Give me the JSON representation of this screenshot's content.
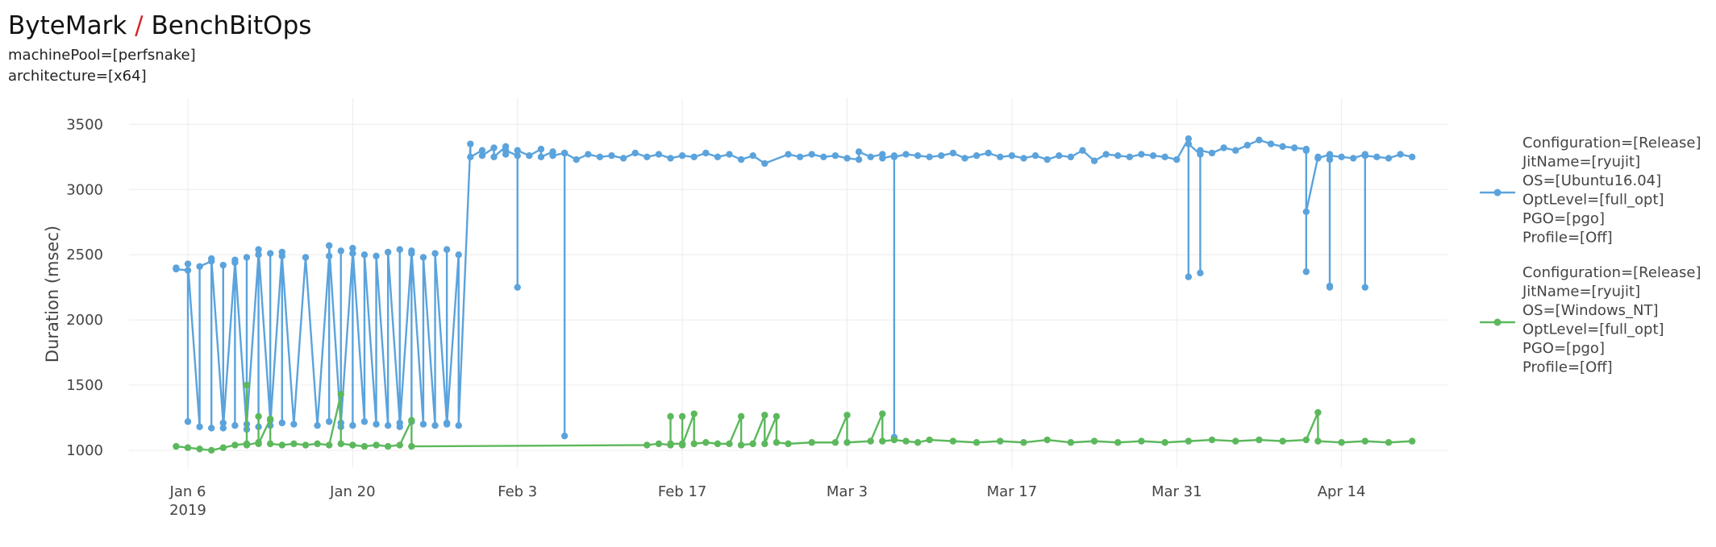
{
  "header": {
    "title_part1": "ByteMark",
    "title_sep": "/",
    "title_part2": "BenchBitOps",
    "filters": [
      "machinePool=[perfsnake]",
      "architecture=[x64]"
    ]
  },
  "colors": {
    "accent_sep": "#d62728",
    "series_blue": "#5ba3dc",
    "series_green": "#5cb85c",
    "grid": "#ececec"
  },
  "chart_data": {
    "type": "line",
    "xlabel": "",
    "ylabel": "Duration (msec)",
    "ylim": [
      870,
      3700
    ],
    "xlim": [
      "2019-01-01",
      "2019-04-23"
    ],
    "y_ticks": [
      1000,
      1500,
      2000,
      2500,
      3000,
      3500
    ],
    "x_ticks": [
      {
        "date": "2019-01-06",
        "label": "Jan 6",
        "sub": "2019"
      },
      {
        "date": "2019-01-20",
        "label": "Jan 20",
        "sub": ""
      },
      {
        "date": "2019-02-03",
        "label": "Feb 3",
        "sub": ""
      },
      {
        "date": "2019-02-17",
        "label": "Feb 17",
        "sub": ""
      },
      {
        "date": "2019-03-03",
        "label": "Mar 3",
        "sub": ""
      },
      {
        "date": "2019-03-17",
        "label": "Mar 17",
        "sub": ""
      },
      {
        "date": "2019-03-31",
        "label": "Mar 31",
        "sub": ""
      },
      {
        "date": "2019-04-14",
        "label": "Apr 14",
        "sub": ""
      }
    ],
    "grid": true,
    "legend_position": "right",
    "series": [
      {
        "name_lines": [
          "Configuration=[Release]",
          "JitName=[ryujit]",
          "OS=[Ubuntu16.04]",
          "OptLevel=[full_opt]",
          "PGO=[pgo]",
          "Profile=[Off]"
        ],
        "color": "#5ba3dc",
        "points": [
          [
            "2019-01-05",
            2400
          ],
          [
            "2019-01-05",
            2390
          ],
          [
            "2019-01-06",
            2380
          ],
          [
            "2019-01-06",
            1220
          ],
          [
            "2019-01-06",
            2430
          ],
          [
            "2019-01-07",
            1180
          ],
          [
            "2019-01-07",
            2410
          ],
          [
            "2019-01-08",
            2450
          ],
          [
            "2019-01-08",
            1170
          ],
          [
            "2019-01-08",
            2470
          ],
          [
            "2019-01-09",
            1210
          ],
          [
            "2019-01-09",
            2420
          ],
          [
            "2019-01-09",
            1170
          ],
          [
            "2019-01-10",
            2440
          ],
          [
            "2019-01-10",
            1190
          ],
          [
            "2019-01-10",
            2460
          ],
          [
            "2019-01-11",
            1160
          ],
          [
            "2019-01-11",
            2480
          ],
          [
            "2019-01-11",
            1200
          ],
          [
            "2019-01-12",
            2500
          ],
          [
            "2019-01-12",
            1180
          ],
          [
            "2019-01-12",
            2540
          ],
          [
            "2019-01-13",
            1230
          ],
          [
            "2019-01-13",
            2510
          ],
          [
            "2019-01-13",
            1190
          ],
          [
            "2019-01-14",
            2520
          ],
          [
            "2019-01-14",
            1210
          ],
          [
            "2019-01-14",
            2490
          ],
          [
            "2019-01-15",
            1200
          ],
          [
            "2019-01-16",
            2480
          ],
          [
            "2019-01-17",
            1190
          ],
          [
            "2019-01-18",
            2490
          ],
          [
            "2019-01-18",
            1220
          ],
          [
            "2019-01-18",
            2570
          ],
          [
            "2019-01-19",
            1180
          ],
          [
            "2019-01-19",
            2530
          ],
          [
            "2019-01-19",
            1210
          ],
          [
            "2019-01-20",
            2510
          ],
          [
            "2019-01-20",
            1190
          ],
          [
            "2019-01-20",
            2550
          ],
          [
            "2019-01-21",
            1220
          ],
          [
            "2019-01-21",
            2500
          ],
          [
            "2019-01-22",
            1200
          ],
          [
            "2019-01-22",
            2490
          ],
          [
            "2019-01-23",
            1190
          ],
          [
            "2019-01-23",
            2520
          ],
          [
            "2019-01-24",
            1210
          ],
          [
            "2019-01-24",
            2540
          ],
          [
            "2019-01-24",
            1180
          ],
          [
            "2019-01-25",
            2510
          ],
          [
            "2019-01-25",
            1220
          ],
          [
            "2019-01-25",
            2530
          ],
          [
            "2019-01-26",
            1200
          ],
          [
            "2019-01-26",
            2480
          ],
          [
            "2019-01-27",
            1190
          ],
          [
            "2019-01-27",
            2510
          ],
          [
            "2019-01-28",
            1210
          ],
          [
            "2019-01-28",
            2540
          ],
          [
            "2019-01-28",
            1200
          ],
          [
            "2019-01-29",
            2500
          ],
          [
            "2019-01-29",
            1190
          ],
          [
            "2019-01-30",
            3350
          ],
          [
            "2019-01-30",
            3250
          ],
          [
            "2019-01-31",
            3300
          ],
          [
            "2019-01-31",
            3260
          ],
          [
            "2019-02-01",
            3320
          ],
          [
            "2019-02-01",
            3250
          ],
          [
            "2019-02-02",
            3330
          ],
          [
            "2019-02-02",
            3270
          ],
          [
            "2019-02-02",
            3300
          ],
          [
            "2019-02-03",
            3260
          ],
          [
            "2019-02-03",
            2250
          ],
          [
            "2019-02-03",
            3300
          ],
          [
            "2019-02-04",
            3260
          ],
          [
            "2019-02-05",
            3310
          ],
          [
            "2019-02-05",
            3250
          ],
          [
            "2019-02-06",
            3290
          ],
          [
            "2019-02-06",
            3260
          ],
          [
            "2019-02-07",
            3280
          ],
          [
            "2019-02-07",
            1110
          ],
          [
            "2019-02-07",
            3280
          ],
          [
            "2019-02-08",
            3230
          ],
          [
            "2019-02-09",
            3270
          ],
          [
            "2019-02-10",
            3250
          ],
          [
            "2019-02-11",
            3260
          ],
          [
            "2019-02-12",
            3240
          ],
          [
            "2019-02-13",
            3280
          ],
          [
            "2019-02-14",
            3250
          ],
          [
            "2019-02-15",
            3270
          ],
          [
            "2019-02-16",
            3240
          ],
          [
            "2019-02-17",
            3260
          ],
          [
            "2019-02-18",
            3250
          ],
          [
            "2019-02-19",
            3280
          ],
          [
            "2019-02-20",
            3250
          ],
          [
            "2019-02-21",
            3270
          ],
          [
            "2019-02-22",
            3230
          ],
          [
            "2019-02-23",
            3260
          ],
          [
            "2019-02-24",
            3200
          ],
          [
            "2019-02-26",
            3270
          ],
          [
            "2019-02-27",
            3250
          ],
          [
            "2019-02-28",
            3270
          ],
          [
            "2019-03-01",
            3250
          ],
          [
            "2019-03-02",
            3260
          ],
          [
            "2019-03-03",
            3240
          ],
          [
            "2019-03-04",
            3230
          ],
          [
            "2019-03-04",
            3290
          ],
          [
            "2019-03-05",
            3250
          ],
          [
            "2019-03-06",
            3270
          ],
          [
            "2019-03-06",
            3240
          ],
          [
            "2019-03-07",
            3260
          ],
          [
            "2019-03-07",
            1100
          ],
          [
            "2019-03-07",
            3250
          ],
          [
            "2019-03-08",
            3270
          ],
          [
            "2019-03-09",
            3260
          ],
          [
            "2019-03-10",
            3250
          ],
          [
            "2019-03-11",
            3260
          ],
          [
            "2019-03-12",
            3280
          ],
          [
            "2019-03-13",
            3240
          ],
          [
            "2019-03-14",
            3260
          ],
          [
            "2019-03-15",
            3280
          ],
          [
            "2019-03-16",
            3250
          ],
          [
            "2019-03-17",
            3260
          ],
          [
            "2019-03-18",
            3240
          ],
          [
            "2019-03-19",
            3260
          ],
          [
            "2019-03-20",
            3230
          ],
          [
            "2019-03-21",
            3260
          ],
          [
            "2019-03-22",
            3250
          ],
          [
            "2019-03-23",
            3300
          ],
          [
            "2019-03-24",
            3220
          ],
          [
            "2019-03-25",
            3270
          ],
          [
            "2019-03-26",
            3260
          ],
          [
            "2019-03-27",
            3250
          ],
          [
            "2019-03-28",
            3270
          ],
          [
            "2019-03-29",
            3260
          ],
          [
            "2019-03-30",
            3250
          ],
          [
            "2019-03-31",
            3230
          ],
          [
            "2019-04-01",
            3390
          ],
          [
            "2019-04-01",
            2330
          ],
          [
            "2019-04-01",
            3350
          ],
          [
            "2019-04-02",
            3270
          ],
          [
            "2019-04-02",
            2360
          ],
          [
            "2019-04-02",
            3300
          ],
          [
            "2019-04-03",
            3280
          ],
          [
            "2019-04-04",
            3320
          ],
          [
            "2019-04-05",
            3300
          ],
          [
            "2019-04-06",
            3340
          ],
          [
            "2019-04-07",
            3380
          ],
          [
            "2019-04-08",
            3350
          ],
          [
            "2019-04-09",
            3330
          ],
          [
            "2019-04-10",
            3320
          ],
          [
            "2019-04-11",
            3310
          ],
          [
            "2019-04-11",
            2370
          ],
          [
            "2019-04-11",
            3300
          ],
          [
            "2019-04-11",
            2830
          ],
          [
            "2019-04-12",
            3250
          ],
          [
            "2019-04-12",
            3240
          ],
          [
            "2019-04-13",
            3270
          ],
          [
            "2019-04-13",
            2260
          ],
          [
            "2019-04-13",
            3230
          ],
          [
            "2019-04-13",
            2250
          ],
          [
            "2019-04-13",
            3260
          ],
          [
            "2019-04-14",
            3250
          ],
          [
            "2019-04-15",
            3240
          ],
          [
            "2019-04-16",
            3270
          ],
          [
            "2019-04-16",
            2250
          ],
          [
            "2019-04-16",
            3260
          ],
          [
            "2019-04-17",
            3250
          ],
          [
            "2019-04-18",
            3240
          ],
          [
            "2019-04-19",
            3270
          ],
          [
            "2019-04-20",
            3250
          ]
        ]
      },
      {
        "name_lines": [
          "Configuration=[Release]",
          "JitName=[ryujit]",
          "OS=[Windows_NT]",
          "OptLevel=[full_opt]",
          "PGO=[pgo]",
          "Profile=[Off]"
        ],
        "color": "#5cb85c",
        "points": [
          [
            "2019-01-05",
            1030
          ],
          [
            "2019-01-06",
            1020
          ],
          [
            "2019-01-07",
            1010
          ],
          [
            "2019-01-08",
            1000
          ],
          [
            "2019-01-09",
            1020
          ],
          [
            "2019-01-10",
            1040
          ],
          [
            "2019-01-11",
            1050
          ],
          [
            "2019-01-11",
            1500
          ],
          [
            "2019-01-11",
            1040
          ],
          [
            "2019-01-12",
            1060
          ],
          [
            "2019-01-12",
            1260
          ],
          [
            "2019-01-12",
            1050
          ],
          [
            "2019-01-13",
            1240
          ],
          [
            "2019-01-13",
            1050
          ],
          [
            "2019-01-14",
            1040
          ],
          [
            "2019-01-15",
            1050
          ],
          [
            "2019-01-16",
            1040
          ],
          [
            "2019-01-17",
            1050
          ],
          [
            "2019-01-18",
            1040
          ],
          [
            "2019-01-19",
            1430
          ],
          [
            "2019-01-19",
            1050
          ],
          [
            "2019-01-20",
            1040
          ],
          [
            "2019-01-21",
            1030
          ],
          [
            "2019-01-22",
            1040
          ],
          [
            "2019-01-23",
            1030
          ],
          [
            "2019-01-24",
            1040
          ],
          [
            "2019-01-25",
            1230
          ],
          [
            "2019-01-25",
            1030
          ],
          [
            "2019-02-14",
            1040
          ],
          [
            "2019-02-15",
            1050
          ],
          [
            "2019-02-16",
            1040
          ],
          [
            "2019-02-16",
            1260
          ],
          [
            "2019-02-16",
            1050
          ],
          [
            "2019-02-17",
            1050
          ],
          [
            "2019-02-17",
            1260
          ],
          [
            "2019-02-17",
            1040
          ],
          [
            "2019-02-18",
            1280
          ],
          [
            "2019-02-18",
            1050
          ],
          [
            "2019-02-19",
            1060
          ],
          [
            "2019-02-20",
            1050
          ],
          [
            "2019-02-21",
            1050
          ],
          [
            "2019-02-22",
            1260
          ],
          [
            "2019-02-22",
            1040
          ],
          [
            "2019-02-23",
            1050
          ],
          [
            "2019-02-24",
            1270
          ],
          [
            "2019-02-24",
            1050
          ],
          [
            "2019-02-25",
            1260
          ],
          [
            "2019-02-25",
            1060
          ],
          [
            "2019-02-26",
            1050
          ],
          [
            "2019-02-28",
            1060
          ],
          [
            "2019-03-02",
            1060
          ],
          [
            "2019-03-03",
            1270
          ],
          [
            "2019-03-03",
            1060
          ],
          [
            "2019-03-05",
            1070
          ],
          [
            "2019-03-06",
            1280
          ],
          [
            "2019-03-06",
            1070
          ],
          [
            "2019-03-07",
            1080
          ],
          [
            "2019-03-08",
            1070
          ],
          [
            "2019-03-09",
            1060
          ],
          [
            "2019-03-10",
            1080
          ],
          [
            "2019-03-12",
            1070
          ],
          [
            "2019-03-14",
            1060
          ],
          [
            "2019-03-16",
            1070
          ],
          [
            "2019-03-18",
            1060
          ],
          [
            "2019-03-20",
            1080
          ],
          [
            "2019-03-22",
            1060
          ],
          [
            "2019-03-24",
            1070
          ],
          [
            "2019-03-26",
            1060
          ],
          [
            "2019-03-28",
            1070
          ],
          [
            "2019-03-30",
            1060
          ],
          [
            "2019-04-01",
            1070
          ],
          [
            "2019-04-03",
            1080
          ],
          [
            "2019-04-05",
            1070
          ],
          [
            "2019-04-07",
            1080
          ],
          [
            "2019-04-09",
            1070
          ],
          [
            "2019-04-11",
            1080
          ],
          [
            "2019-04-12",
            1290
          ],
          [
            "2019-04-12",
            1070
          ],
          [
            "2019-04-14",
            1060
          ],
          [
            "2019-04-16",
            1070
          ],
          [
            "2019-04-18",
            1060
          ],
          [
            "2019-04-20",
            1070
          ]
        ]
      }
    ]
  }
}
